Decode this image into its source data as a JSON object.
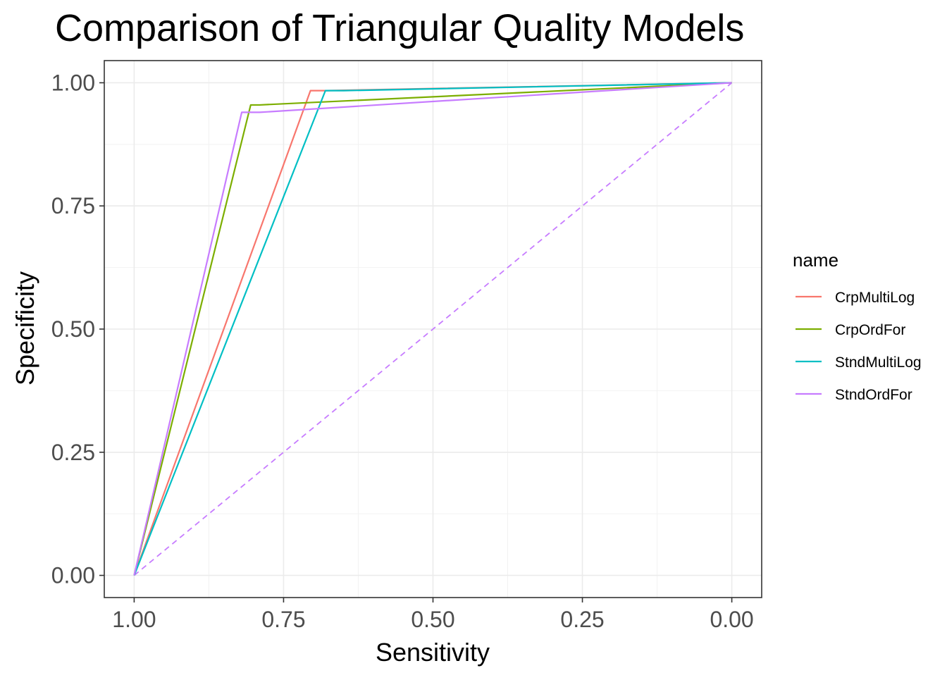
{
  "chart_data": {
    "type": "line",
    "title": "Comparison of Triangular Quality Models",
    "xlabel": "Sensitivity",
    "ylabel": "Specificity",
    "xlim": [
      1.05,
      -0.05
    ],
    "ylim": [
      -0.045,
      1.045
    ],
    "x_reversed": true,
    "x_ticks": [
      1.0,
      0.75,
      0.5,
      0.25,
      0.0
    ],
    "x_tick_labels": [
      "1.00",
      "0.75",
      "0.50",
      "0.25",
      "0.00"
    ],
    "y_ticks": [
      0.0,
      0.25,
      0.5,
      0.75,
      1.0
    ],
    "y_tick_labels": [
      "0.00",
      "0.25",
      "0.50",
      "0.75",
      "1.00"
    ],
    "grid": true,
    "legend_title": "name",
    "legend_position": "right",
    "series": [
      {
        "name": "CrpMultiLog",
        "color": "#F8766D",
        "x": [
          1.0,
          0.705,
          0.68,
          0.0
        ],
        "y": [
          0.0,
          0.984,
          0.984,
          1.0
        ]
      },
      {
        "name": "CrpOrdFor",
        "color": "#7CAE00",
        "x": [
          1.0,
          0.805,
          0.79,
          0.0
        ],
        "y": [
          0.0,
          0.955,
          0.955,
          1.0
        ]
      },
      {
        "name": "StndMultiLog",
        "color": "#00BFC4",
        "x": [
          1.0,
          0.68,
          0.65,
          0.0
        ],
        "y": [
          0.0,
          0.984,
          0.984,
          1.0
        ]
      },
      {
        "name": "StndOrdFor",
        "color": "#C77CFF",
        "x": [
          1.0,
          0.82,
          0.79,
          0.0
        ],
        "y": [
          0.0,
          0.94,
          0.94,
          1.0
        ]
      }
    ],
    "reference_line": {
      "color": "#C77CFF",
      "style": "dashed",
      "x": [
        1.0,
        0.0
      ],
      "y": [
        0.0,
        1.0
      ]
    }
  }
}
